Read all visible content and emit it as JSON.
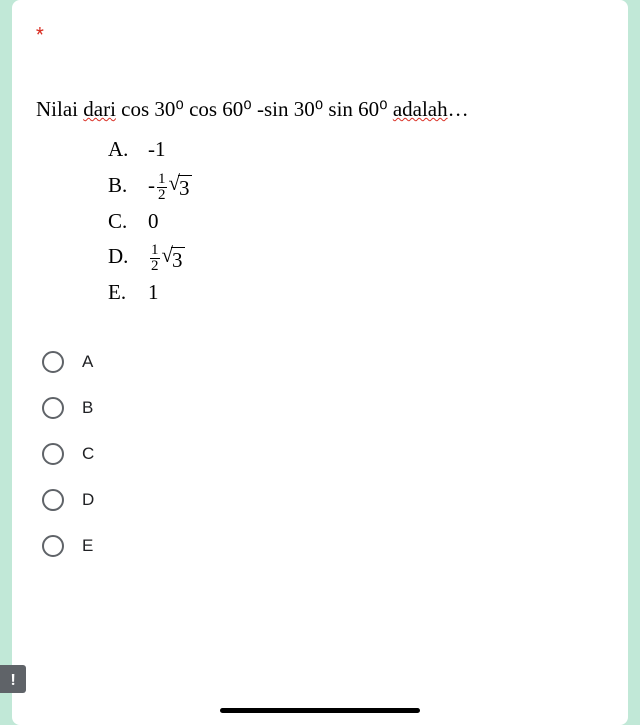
{
  "required_mark": "*",
  "question": {
    "prefix": "Nilai ",
    "squiggle1": "dari",
    "mid": " cos 30⁰ cos 60⁰ -sin 30⁰ sin 60⁰ ",
    "squiggle2": "adalah",
    "suffix": "…"
  },
  "answers": {
    "a": {
      "letter": "A.",
      "value": "-1"
    },
    "b": {
      "letter": "B.",
      "neg": "-",
      "num": "1",
      "den": "2",
      "sqrt_arg": "3"
    },
    "c": {
      "letter": "C.",
      "value": "0"
    },
    "d": {
      "letter": "D.",
      "num": "1",
      "den": "2",
      "sqrt_arg": "3"
    },
    "e": {
      "letter": "E.",
      "value": "1"
    }
  },
  "options": {
    "a": "A",
    "b": "B",
    "c": "C",
    "d": "D",
    "e": "E"
  },
  "alert": "!",
  "colors": {
    "background": "#c1e8d7",
    "card": "#ffffff",
    "required": "#d93025",
    "radio_border": "#5f6368",
    "text": "#202124"
  }
}
